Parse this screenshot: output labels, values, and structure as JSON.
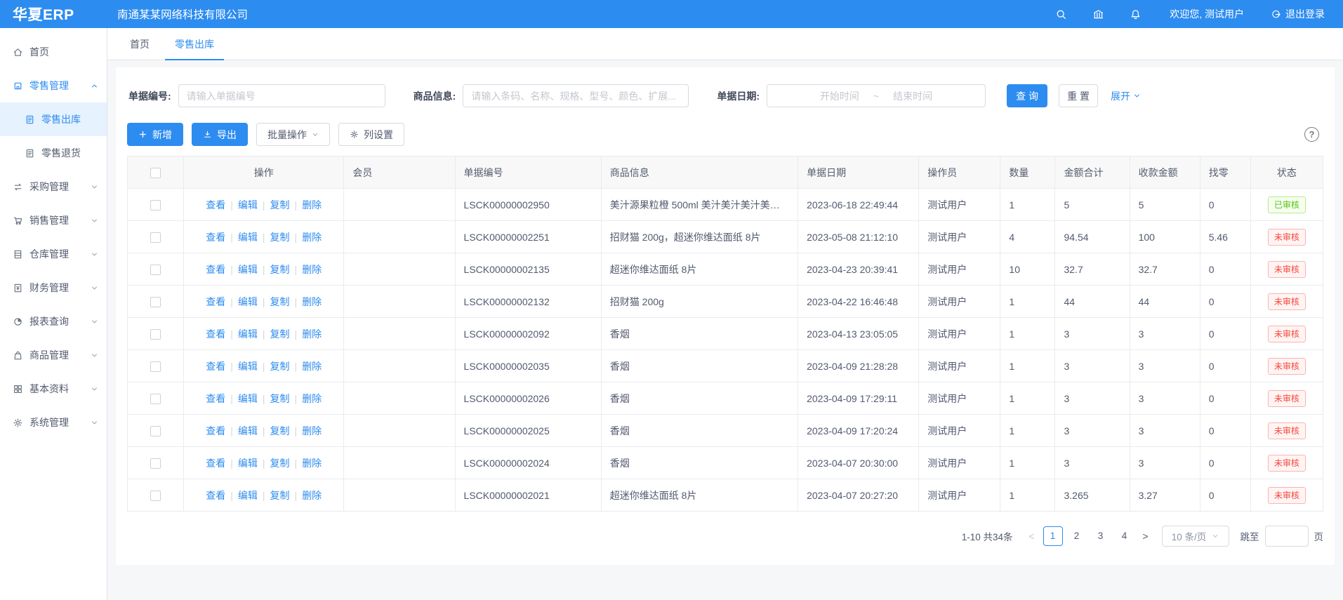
{
  "accent_color": "#2d8cf0",
  "header": {
    "logo": "华夏ERP",
    "company": "南通某某网络科技有限公司",
    "welcome": "欢迎您, 测试用户",
    "logout": "退出登录"
  },
  "sidebar": {
    "items": [
      {
        "key": "home",
        "label": "首页",
        "icon": "home"
      },
      {
        "key": "retail-management",
        "label": "零售管理",
        "icon": "shop",
        "chevron": "up",
        "parent_active": true
      },
      {
        "key": "retail-outbound",
        "label": "零售出库",
        "icon": "doc",
        "child": true,
        "selected": true
      },
      {
        "key": "retail-return",
        "label": "零售退货",
        "icon": "doc",
        "child": true
      },
      {
        "key": "purchase-management",
        "label": "采购管理",
        "icon": "swap",
        "chevron": "down"
      },
      {
        "key": "sales-management",
        "label": "销售管理",
        "icon": "cart",
        "chevron": "down"
      },
      {
        "key": "warehouse-management",
        "label": "仓库管理",
        "icon": "warehouse",
        "chevron": "down"
      },
      {
        "key": "finance-management",
        "label": "财务管理",
        "icon": "money",
        "chevron": "down"
      },
      {
        "key": "report-query",
        "label": "报表查询",
        "icon": "pie",
        "chevron": "down"
      },
      {
        "key": "product-management",
        "label": "商品管理",
        "icon": "bag",
        "chevron": "down"
      },
      {
        "key": "basic-data",
        "label": "基本资料",
        "icon": "grid",
        "chevron": "down"
      },
      {
        "key": "system-management",
        "label": "系统管理",
        "icon": "gear",
        "chevron": "down"
      }
    ]
  },
  "tabs": [
    {
      "key": "home",
      "label": "首页"
    },
    {
      "key": "retail-outbound",
      "label": "零售出库",
      "active": true
    }
  ],
  "filters": {
    "bill_no": {
      "label": "单据编号:",
      "placeholder": "请输入单据编号"
    },
    "product": {
      "label": "商品信息:",
      "placeholder": "请输入条码、名称、规格、型号、颜色、扩展..."
    },
    "date": {
      "label": "单据日期:",
      "start_placeholder": "开始时间",
      "separator": "~",
      "end_placeholder": "结束时间"
    },
    "search_label": "查 询",
    "reset_label": "重 置",
    "expand_label": "展开"
  },
  "toolbar": {
    "add_label": "新增",
    "export_label": "导出",
    "batch_label": "批量操作",
    "columns_label": "列设置",
    "help_label": "?"
  },
  "table": {
    "headers": [
      "操作",
      "会员",
      "单据编号",
      "商品信息",
      "单据日期",
      "操作员",
      "数量",
      "金额合计",
      "收款金额",
      "找零",
      "状态"
    ],
    "action_labels": [
      "查看",
      "编辑",
      "复制",
      "删除"
    ],
    "status_colors": {
      "approved": "#52c41a",
      "pending": "#f5483b"
    },
    "rows": [
      {
        "member": "",
        "bill_no": "LSCK00000002950",
        "product": "美汁源果粒橙 500ml 美汁美汁美汁美汁美...",
        "date": "2023-06-18 22:49:44",
        "operator": "测试用户",
        "qty": "1",
        "total": "5",
        "received": "5",
        "change": "0",
        "status": "已审核",
        "status_type": "approved"
      },
      {
        "member": "",
        "bill_no": "LSCK00000002251",
        "product": "招财猫 200g，超迷你维达面纸 8片",
        "date": "2023-05-08 21:12:10",
        "operator": "测试用户",
        "qty": "4",
        "total": "94.54",
        "received": "100",
        "change": "5.46",
        "status": "未审核",
        "status_type": "pending"
      },
      {
        "member": "",
        "bill_no": "LSCK00000002135",
        "product": "超迷你维达面纸 8片",
        "date": "2023-04-23 20:39:41",
        "operator": "测试用户",
        "qty": "10",
        "total": "32.7",
        "received": "32.7",
        "change": "0",
        "status": "未审核",
        "status_type": "pending"
      },
      {
        "member": "",
        "bill_no": "LSCK00000002132",
        "product": "招财猫 200g",
        "date": "2023-04-22 16:46:48",
        "operator": "测试用户",
        "qty": "1",
        "total": "44",
        "received": "44",
        "change": "0",
        "status": "未审核",
        "status_type": "pending"
      },
      {
        "member": "",
        "bill_no": "LSCK00000002092",
        "product": "香烟",
        "date": "2023-04-13 23:05:05",
        "operator": "测试用户",
        "qty": "1",
        "total": "3",
        "received": "3",
        "change": "0",
        "status": "未审核",
        "status_type": "pending"
      },
      {
        "member": "",
        "bill_no": "LSCK00000002035",
        "product": "香烟",
        "date": "2023-04-09 21:28:28",
        "operator": "测试用户",
        "qty": "1",
        "total": "3",
        "received": "3",
        "change": "0",
        "status": "未审核",
        "status_type": "pending"
      },
      {
        "member": "",
        "bill_no": "LSCK00000002026",
        "product": "香烟",
        "date": "2023-04-09 17:29:11",
        "operator": "测试用户",
        "qty": "1",
        "total": "3",
        "received": "3",
        "change": "0",
        "status": "未审核",
        "status_type": "pending"
      },
      {
        "member": "",
        "bill_no": "LSCK00000002025",
        "product": "香烟",
        "date": "2023-04-09 17:20:24",
        "operator": "测试用户",
        "qty": "1",
        "total": "3",
        "received": "3",
        "change": "0",
        "status": "未审核",
        "status_type": "pending"
      },
      {
        "member": "",
        "bill_no": "LSCK00000002024",
        "product": "香烟",
        "date": "2023-04-07 20:30:00",
        "operator": "测试用户",
        "qty": "1",
        "total": "3",
        "received": "3",
        "change": "0",
        "status": "未审核",
        "status_type": "pending"
      },
      {
        "member": "",
        "bill_no": "LSCK00000002021",
        "product": "超迷你维达面纸 8片",
        "date": "2023-04-07 20:27:20",
        "operator": "测试用户",
        "qty": "1",
        "total": "3.265",
        "received": "3.27",
        "change": "0",
        "status": "未审核",
        "status_type": "pending"
      }
    ]
  },
  "pagination": {
    "summary": "1-10 共34条",
    "prev": "<",
    "next": ">",
    "pages": [
      "1",
      "2",
      "3",
      "4"
    ],
    "active_page": "1",
    "page_size": "10 条/页",
    "jump_label": "跳至",
    "jump_value": "",
    "page_suffix": "页"
  }
}
